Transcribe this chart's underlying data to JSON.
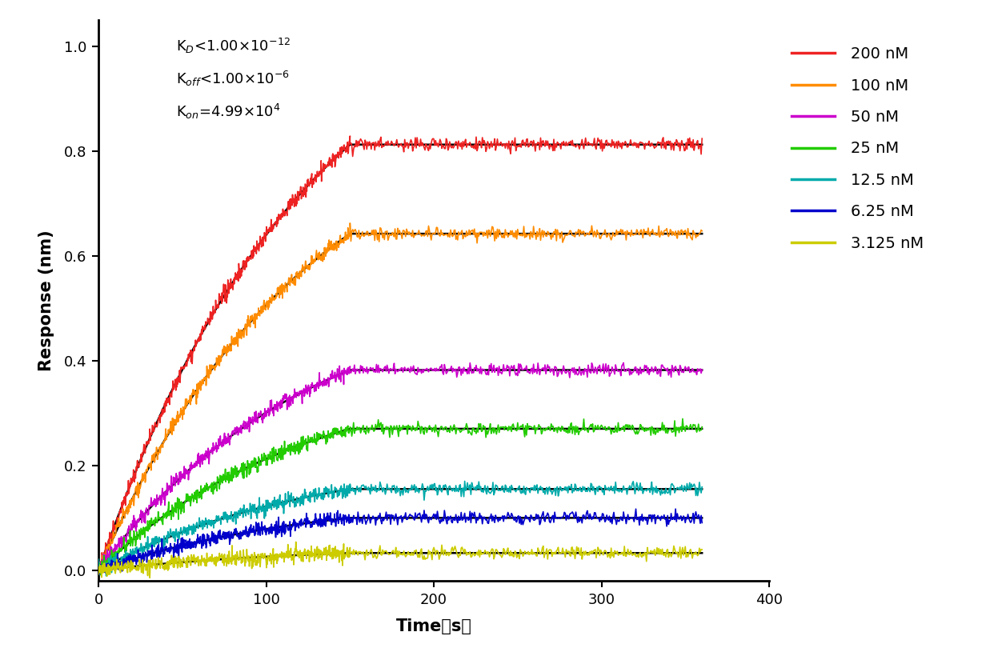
{
  "xlabel": "Time（s）",
  "ylabel": "Response (nm)",
  "xlim": [
    0,
    400
  ],
  "ylim": [
    -0.02,
    1.05
  ],
  "yticks": [
    0.0,
    0.2,
    0.4,
    0.6,
    0.8,
    1.0
  ],
  "xticks": [
    0,
    100,
    200,
    300,
    400
  ],
  "annotation_lines": [
    "K$_{D}$<1.00×10$^{-12}$",
    "K$_{off}$<1.00×10$^{-6}$",
    "K$_{on}$=4.99×10$^{4}$"
  ],
  "curves": [
    {
      "label": "200 nM",
      "color": "#EE2222",
      "plateau": 0.812,
      "linear_slope": 0.00541,
      "t_assoc": 150,
      "t_end": 360
    },
    {
      "label": "100 nM",
      "color": "#FF8C00",
      "plateau": 0.642,
      "linear_slope": 0.00428,
      "t_assoc": 150,
      "t_end": 360
    },
    {
      "label": "50 nM",
      "color": "#CC00CC",
      "plateau": 0.382,
      "linear_slope": 0.00255,
      "t_assoc": 150,
      "t_end": 360
    },
    {
      "label": "25 nM",
      "color": "#22CC00",
      "plateau": 0.27,
      "linear_slope": 0.0018,
      "t_assoc": 150,
      "t_end": 360
    },
    {
      "label": "12.5 nM",
      "color": "#00AAAA",
      "plateau": 0.155,
      "linear_slope": 0.00103,
      "t_assoc": 150,
      "t_end": 360
    },
    {
      "label": "6.25 nM",
      "color": "#0000CC",
      "plateau": 0.1,
      "linear_slope": 0.000667,
      "t_assoc": 150,
      "t_end": 360
    },
    {
      "label": "3.125 nM",
      "color": "#CCCC00",
      "plateau": 0.033,
      "linear_slope": 0.00022,
      "t_assoc": 150,
      "t_end": 360
    }
  ],
  "fit_color": "#000000",
  "noise_amplitude": 0.006,
  "legend_fontsize": 14,
  "axis_fontsize": 15,
  "tick_fontsize": 13,
  "annotation_fontsize": 13,
  "background_color": "#ffffff",
  "fit_linewidth": 1.8,
  "data_linewidth": 1.2
}
